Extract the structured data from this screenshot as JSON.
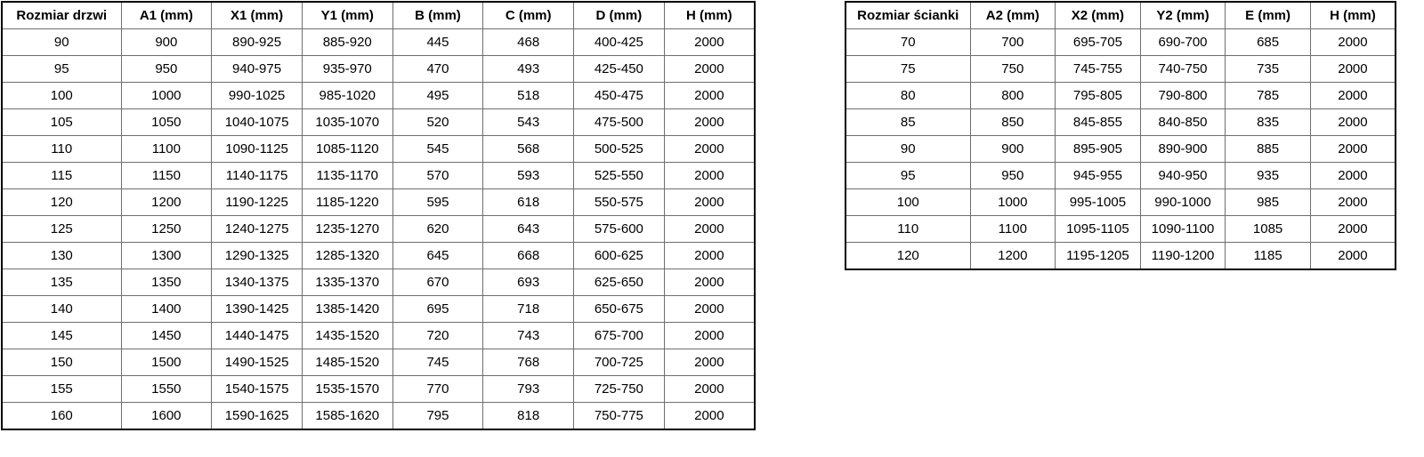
{
  "colors": {
    "background": "#ffffff",
    "text": "#000000",
    "border_outer": "#000000",
    "border_inner": "#6e6e6e"
  },
  "door_table": {
    "name": "door-size-table",
    "headers": [
      "Rozmiar drzwi",
      "A1 (mm)",
      "X1 (mm)",
      "Y1 (mm)",
      "B (mm)",
      "C (mm)",
      "D (mm)",
      "H (mm)"
    ],
    "rows": [
      [
        "90",
        "900",
        "890-925",
        "885-920",
        "445",
        "468",
        "400-425",
        "2000"
      ],
      [
        "95",
        "950",
        "940-975",
        "935-970",
        "470",
        "493",
        "425-450",
        "2000"
      ],
      [
        "100",
        "1000",
        "990-1025",
        "985-1020",
        "495",
        "518",
        "450-475",
        "2000"
      ],
      [
        "105",
        "1050",
        "1040-1075",
        "1035-1070",
        "520",
        "543",
        "475-500",
        "2000"
      ],
      [
        "110",
        "1100",
        "1090-1125",
        "1085-1120",
        "545",
        "568",
        "500-525",
        "2000"
      ],
      [
        "115",
        "1150",
        "1140-1175",
        "1135-1170",
        "570",
        "593",
        "525-550",
        "2000"
      ],
      [
        "120",
        "1200",
        "1190-1225",
        "1185-1220",
        "595",
        "618",
        "550-575",
        "2000"
      ],
      [
        "125",
        "1250",
        "1240-1275",
        "1235-1270",
        "620",
        "643",
        "575-600",
        "2000"
      ],
      [
        "130",
        "1300",
        "1290-1325",
        "1285-1320",
        "645",
        "668",
        "600-625",
        "2000"
      ],
      [
        "135",
        "1350",
        "1340-1375",
        "1335-1370",
        "670",
        "693",
        "625-650",
        "2000"
      ],
      [
        "140",
        "1400",
        "1390-1425",
        "1385-1420",
        "695",
        "718",
        "650-675",
        "2000"
      ],
      [
        "145",
        "1450",
        "1440-1475",
        "1435-1520",
        "720",
        "743",
        "675-700",
        "2000"
      ],
      [
        "150",
        "1500",
        "1490-1525",
        "1485-1520",
        "745",
        "768",
        "700-725",
        "2000"
      ],
      [
        "155",
        "1550",
        "1540-1575",
        "1535-1570",
        "770",
        "793",
        "725-750",
        "2000"
      ],
      [
        "160",
        "1600",
        "1590-1625",
        "1585-1620",
        "795",
        "818",
        "750-775",
        "2000"
      ]
    ]
  },
  "wall_table": {
    "name": "wall-panel-size-table",
    "headers": [
      "Rozmiar ścianki",
      "A2 (mm)",
      "X2 (mm)",
      "Y2 (mm)",
      "E (mm)",
      "H (mm)"
    ],
    "rows": [
      [
        "70",
        "700",
        "695-705",
        "690-700",
        "685",
        "2000"
      ],
      [
        "75",
        "750",
        "745-755",
        "740-750",
        "735",
        "2000"
      ],
      [
        "80",
        "800",
        "795-805",
        "790-800",
        "785",
        "2000"
      ],
      [
        "85",
        "850",
        "845-855",
        "840-850",
        "835",
        "2000"
      ],
      [
        "90",
        "900",
        "895-905",
        "890-900",
        "885",
        "2000"
      ],
      [
        "95",
        "950",
        "945-955",
        "940-950",
        "935",
        "2000"
      ],
      [
        "100",
        "1000",
        "995-1005",
        "990-1000",
        "985",
        "2000"
      ],
      [
        "110",
        "1100",
        "1095-1105",
        "1090-1100",
        "1085",
        "2000"
      ],
      [
        "120",
        "1200",
        "1195-1205",
        "1190-1200",
        "1185",
        "2000"
      ]
    ]
  },
  "chart_data": {
    "type": "table",
    "tables": [
      {
        "title": "Rozmiar drzwi",
        "columns": [
          "Rozmiar drzwi",
          "A1 (mm)",
          "X1 (mm)",
          "Y1 (mm)",
          "B (mm)",
          "C (mm)",
          "D (mm)",
          "H (mm)"
        ]
      },
      {
        "title": "Rozmiar ścianki",
        "columns": [
          "Rozmiar ścianki",
          "A2 (mm)",
          "X2 (mm)",
          "Y2 (mm)",
          "E (mm)",
          "H (mm)"
        ]
      }
    ]
  }
}
